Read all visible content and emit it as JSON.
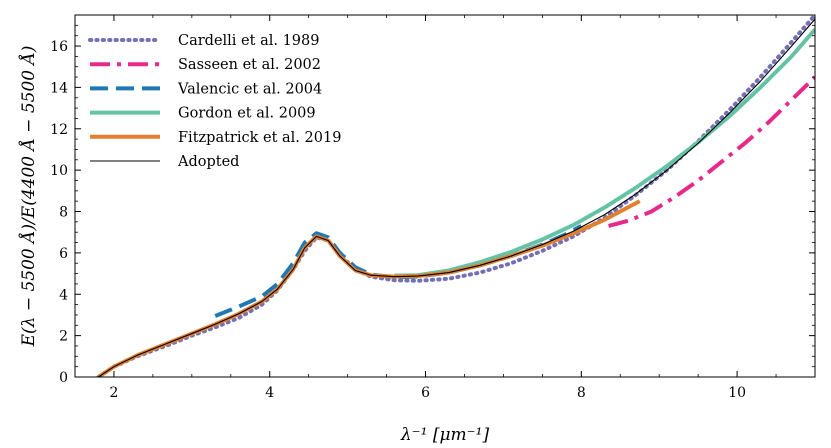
{
  "chart_data": {
    "type": "line",
    "title": "",
    "xlabel": "λ⁻¹ [μm⁻¹]",
    "ylabel": "E(λ − 5500 Å)/E(4400 Å − 5500 Å)",
    "xlim": [
      1.5,
      11.0
    ],
    "ylim": [
      0,
      17.5
    ],
    "xticks": [
      2,
      4,
      6,
      8,
      10
    ],
    "yticks": [
      0,
      2,
      4,
      6,
      8,
      10,
      12,
      14,
      16
    ],
    "xtick_labels": [
      "2",
      "4",
      "6",
      "8",
      "10"
    ],
    "ytick_labels": [
      "0",
      "2",
      "4",
      "6",
      "8",
      "10",
      "12",
      "14",
      "16"
    ],
    "grid": false,
    "legend_position": "top-left",
    "series": [
      {
        "name": "Cardelli et al. 1989",
        "color": "#7570b3",
        "style": "dotted",
        "x": [
          1.8,
          2.0,
          2.3,
          2.7,
          3.0,
          3.3,
          3.6,
          3.9,
          4.1,
          4.3,
          4.45,
          4.6,
          4.75,
          4.9,
          5.1,
          5.3,
          5.6,
          5.9,
          6.3,
          6.7,
          7.1,
          7.5,
          7.9,
          8.3,
          8.7,
          9.1,
          9.5,
          9.9,
          10.3,
          10.7,
          11.0
        ],
        "y": [
          0.0,
          0.5,
          1.0,
          1.55,
          2.0,
          2.4,
          2.85,
          3.5,
          4.2,
          5.2,
          6.1,
          6.75,
          6.6,
          5.9,
          5.2,
          4.85,
          4.68,
          4.65,
          4.75,
          5.05,
          5.5,
          6.1,
          6.8,
          7.7,
          8.8,
          10.0,
          11.4,
          12.9,
          14.5,
          16.2,
          17.5
        ]
      },
      {
        "name": "Sasseen et al. 2002",
        "color": "#e7298a",
        "style": "dashdot",
        "x": [
          8.35,
          8.6,
          8.9,
          9.2,
          9.5,
          9.8,
          10.1,
          10.4,
          10.7,
          11.0
        ],
        "y": [
          7.3,
          7.55,
          8.0,
          8.7,
          9.5,
          10.4,
          11.3,
          12.3,
          13.4,
          14.5
        ]
      },
      {
        "name": "Valencic et al. 2004",
        "color": "#1f78b4",
        "style": "dashed",
        "x": [
          3.3,
          3.6,
          3.9,
          4.1,
          4.3,
          4.45,
          4.6,
          4.75,
          4.9,
          5.1,
          5.3,
          5.6,
          5.9,
          6.3,
          6.7,
          7.1,
          7.5,
          7.8,
          8.0
        ],
        "y": [
          2.95,
          3.4,
          3.9,
          4.5,
          5.5,
          6.5,
          6.95,
          6.75,
          6.0,
          5.3,
          4.95,
          4.82,
          4.85,
          5.05,
          5.4,
          5.85,
          6.4,
          6.9,
          7.3
        ]
      },
      {
        "name": "Gordon et al. 2009",
        "color": "#66c2a5",
        "style": "solid-thick",
        "x": [
          5.6,
          5.9,
          6.3,
          6.7,
          7.1,
          7.5,
          7.9,
          8.3,
          8.7,
          9.1,
          9.5,
          9.9,
          10.3,
          10.7,
          11.0
        ],
        "y": [
          4.9,
          4.92,
          5.15,
          5.55,
          6.05,
          6.65,
          7.35,
          8.2,
          9.15,
          10.2,
          11.35,
          12.6,
          14.0,
          15.5,
          16.8
        ]
      },
      {
        "name": "Fitzpatrick et al. 2019",
        "color": "#e08030",
        "style": "solid-thick",
        "x": [
          1.8,
          2.0,
          2.3,
          2.7,
          3.0,
          3.3,
          3.6,
          3.9,
          4.1,
          4.3,
          4.45,
          4.6,
          4.75,
          4.9,
          5.1,
          5.3,
          5.6,
          5.9,
          6.3,
          6.7,
          7.1,
          7.5,
          7.9,
          8.3,
          8.75
        ],
        "y": [
          0.0,
          0.5,
          1.05,
          1.65,
          2.1,
          2.55,
          3.05,
          3.65,
          4.25,
          5.2,
          6.25,
          6.8,
          6.6,
          5.85,
          5.15,
          4.92,
          4.85,
          4.88,
          5.05,
          5.4,
          5.85,
          6.35,
          6.95,
          7.6,
          8.5
        ]
      },
      {
        "name": "Adopted",
        "color": "#000000",
        "style": "solid-thin",
        "x": [
          1.8,
          2.0,
          2.3,
          2.7,
          3.0,
          3.3,
          3.6,
          3.9,
          4.1,
          4.3,
          4.45,
          4.6,
          4.75,
          4.9,
          5.1,
          5.3,
          5.6,
          5.9,
          6.3,
          6.7,
          7.1,
          7.5,
          7.9,
          8.3,
          8.7,
          9.1,
          9.5,
          9.9,
          10.3,
          10.7,
          11.0
        ],
        "y": [
          0.0,
          0.5,
          1.05,
          1.65,
          2.1,
          2.55,
          3.05,
          3.65,
          4.25,
          5.2,
          6.25,
          6.8,
          6.6,
          5.85,
          5.15,
          4.92,
          4.85,
          4.88,
          5.05,
          5.4,
          5.85,
          6.4,
          7.05,
          7.85,
          8.85,
          10.0,
          11.3,
          12.75,
          14.3,
          16.0,
          17.3
        ]
      }
    ]
  }
}
